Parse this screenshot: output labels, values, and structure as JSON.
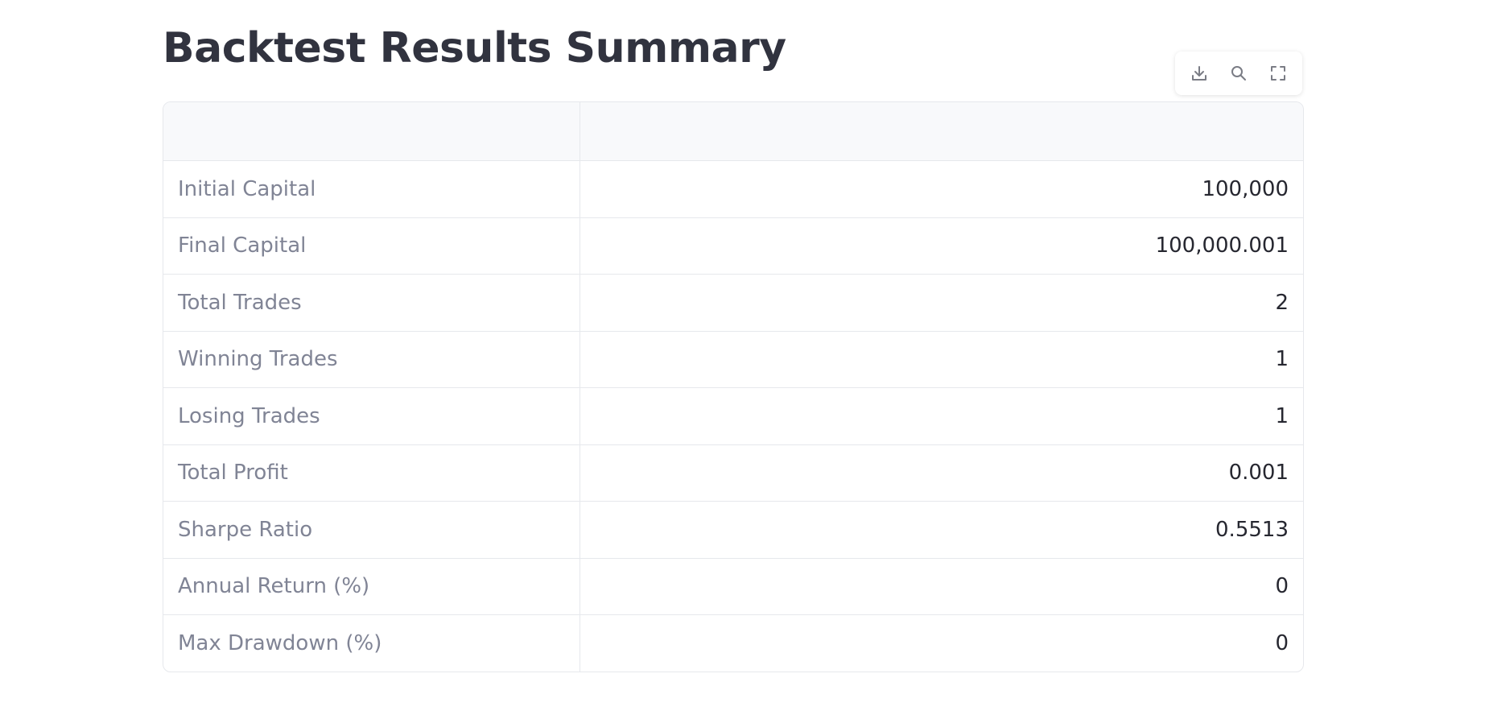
{
  "page": {
    "title": "Backtest Results Summary"
  },
  "toolbar": {
    "buttons": [
      {
        "name": "download",
        "icon": "download-icon"
      },
      {
        "name": "search",
        "icon": "search-icon"
      },
      {
        "name": "fullscreen",
        "icon": "fullscreen-icon"
      }
    ]
  },
  "table": {
    "headers": [
      "",
      ""
    ],
    "rows": [
      {
        "label": "Initial Capital",
        "value": "100,000"
      },
      {
        "label": "Final Capital",
        "value": "100,000.001"
      },
      {
        "label": "Total Trades",
        "value": "2"
      },
      {
        "label": "Winning Trades",
        "value": "1"
      },
      {
        "label": "Losing Trades",
        "value": "1"
      },
      {
        "label": "Total Profit",
        "value": "0.001"
      },
      {
        "label": "Sharpe Ratio",
        "value": "0.5513"
      },
      {
        "label": "Annual Return (%)",
        "value": "0"
      },
      {
        "label": "Max Drawdown (%)",
        "value": "0"
      }
    ]
  },
  "colors": {
    "text_primary": "#31333f",
    "label_text": "#808495",
    "value_text": "#262730",
    "border": "#e6e8ec",
    "header_bg": "#f8f9fb",
    "icon": "#7a7c85"
  }
}
